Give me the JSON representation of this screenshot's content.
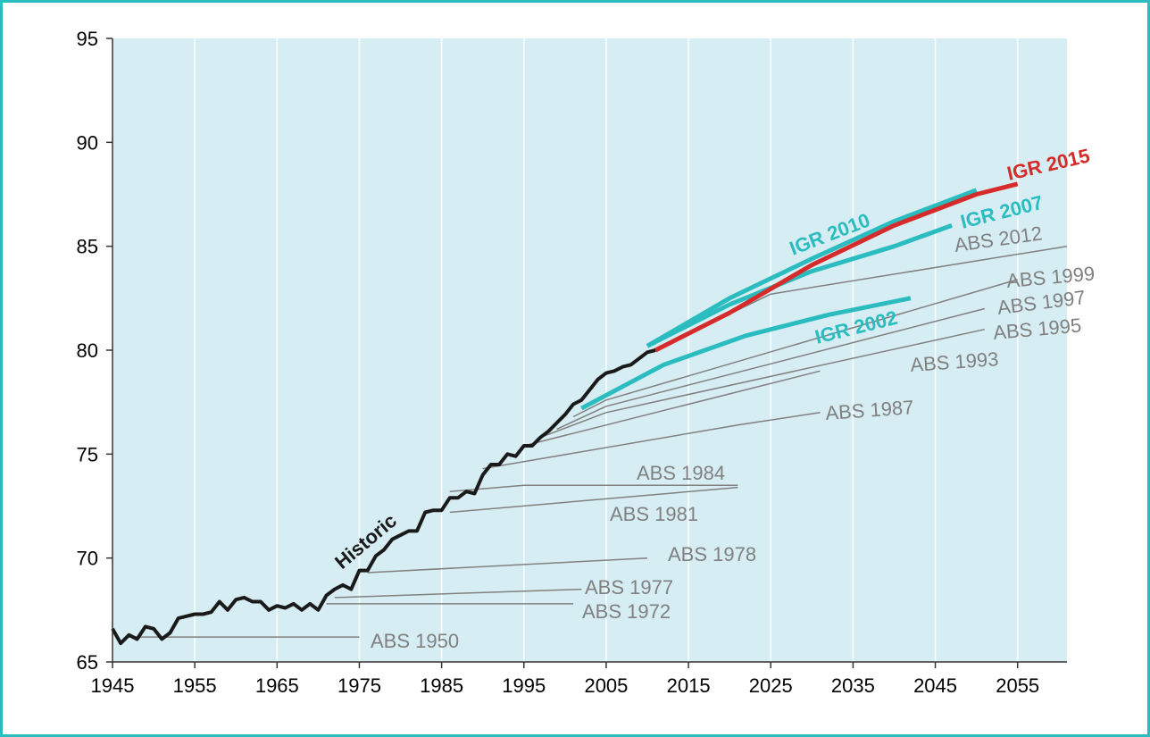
{
  "chart_data": {
    "type": "line",
    "xlim": [
      1945,
      2061
    ],
    "xticks": [
      1945,
      1955,
      1965,
      1975,
      1985,
      1995,
      2005,
      2015,
      2025,
      2035,
      2045,
      2055
    ],
    "ylim": [
      65,
      95
    ],
    "yticks": [
      65,
      70,
      75,
      80,
      85,
      90,
      95
    ],
    "grid": true,
    "series": [
      {
        "name": "ABS 1950",
        "color": "#808080",
        "x": [
          1947,
          1975
        ],
        "values": [
          66.2,
          66.2
        ]
      },
      {
        "name": "ABS 1972",
        "color": "#808080",
        "x": [
          1971,
          2001
        ],
        "values": [
          67.8,
          67.8
        ]
      },
      {
        "name": "ABS 1977",
        "color": "#808080",
        "x": [
          1972,
          2002
        ],
        "values": [
          68.1,
          68.5
        ]
      },
      {
        "name": "ABS 1978",
        "color": "#808080",
        "x": [
          1976,
          2010
        ],
        "values": [
          69.3,
          70.0
        ]
      },
      {
        "name": "ABS 1981",
        "color": "#808080",
        "x": [
          1986,
          2021
        ],
        "values": [
          72.2,
          73.4
        ]
      },
      {
        "name": "ABS 1984",
        "color": "#808080",
        "x": [
          1986,
          1995,
          2021
        ],
        "values": [
          73.2,
          73.5,
          73.5
        ]
      },
      {
        "name": "ABS 1987",
        "color": "#808080",
        "x": [
          1990,
          2021,
          2031
        ],
        "values": [
          74.3,
          76.4,
          77.0
        ]
      },
      {
        "name": "ABS 1993",
        "color": "#808080",
        "x": [
          1995,
          2031
        ],
        "values": [
          75.4,
          79.0
        ]
      },
      {
        "name": "ABS 1995",
        "color": "#808080",
        "x": [
          1997,
          2005,
          2051
        ],
        "values": [
          75.8,
          77.0,
          81.0
        ]
      },
      {
        "name": "ABS 1997",
        "color": "#808080",
        "x": [
          1999,
          2005,
          2051
        ],
        "values": [
          76.2,
          77.3,
          82.0
        ]
      },
      {
        "name": "ABS 1999",
        "color": "#808080",
        "x": [
          2001,
          2005,
          2055
        ],
        "values": [
          76.8,
          77.6,
          83.4
        ]
      },
      {
        "name": "ABS 2012",
        "color": "#808080",
        "x": [
          2012,
          2025,
          2061
        ],
        "values": [
          80.2,
          82.7,
          85.0
        ]
      },
      {
        "name": "IGR 2002",
        "color": "#2bbcc0",
        "x": [
          2002,
          2012,
          2022,
          2032,
          2042
        ],
        "values": [
          77.2,
          79.3,
          80.7,
          81.7,
          82.5
        ]
      },
      {
        "name": "IGR 2007",
        "color": "#2bbcc0",
        "x": [
          2010,
          2020,
          2030,
          2040,
          2047
        ],
        "values": [
          80.2,
          82.2,
          83.8,
          85.0,
          86.0
        ]
      },
      {
        "name": "IGR 2010",
        "color": "#2bbcc0",
        "x": [
          2010,
          2020,
          2030,
          2040,
          2050
        ],
        "values": [
          80.2,
          82.5,
          84.4,
          86.2,
          87.7
        ]
      },
      {
        "name": "IGR 2015",
        "color": "#d62b2b",
        "x": [
          2011,
          2020,
          2030,
          2040,
          2050,
          2055
        ],
        "values": [
          80.0,
          81.8,
          84.1,
          86.0,
          87.5,
          88.0
        ]
      },
      {
        "name": "Historic",
        "color": "#1a1a1a",
        "x": [
          1945,
          1946,
          1947,
          1948,
          1949,
          1950,
          1951,
          1952,
          1953,
          1954,
          1955,
          1956,
          1957,
          1958,
          1959,
          1960,
          1961,
          1962,
          1963,
          1964,
          1965,
          1966,
          1967,
          1968,
          1969,
          1970,
          1971,
          1972,
          1973,
          1974,
          1975,
          1976,
          1977,
          1978,
          1979,
          1980,
          1981,
          1982,
          1983,
          1984,
          1985,
          1986,
          1987,
          1988,
          1989,
          1990,
          1991,
          1992,
          1993,
          1994,
          1995,
          1996,
          1997,
          1998,
          1999,
          2000,
          2001,
          2002,
          2003,
          2004,
          2005,
          2006,
          2007,
          2008,
          2009,
          2010,
          2011
        ],
        "values": [
          66.6,
          65.9,
          66.3,
          66.1,
          66.7,
          66.6,
          66.1,
          66.4,
          67.1,
          67.2,
          67.3,
          67.3,
          67.4,
          67.9,
          67.5,
          68.0,
          68.1,
          67.9,
          67.9,
          67.5,
          67.7,
          67.6,
          67.8,
          67.5,
          67.8,
          67.5,
          68.2,
          68.5,
          68.7,
          68.5,
          69.4,
          69.4,
          70.1,
          70.4,
          70.9,
          71.1,
          71.3,
          71.3,
          72.2,
          72.3,
          72.3,
          72.9,
          72.9,
          73.2,
          73.1,
          74.0,
          74.5,
          74.5,
          75.0,
          74.9,
          75.4,
          75.4,
          75.8,
          76.1,
          76.5,
          76.9,
          77.4,
          77.6,
          78.1,
          78.6,
          78.9,
          79.0,
          79.2,
          79.3,
          79.6,
          79.9,
          80.0
        ]
      }
    ]
  }
}
